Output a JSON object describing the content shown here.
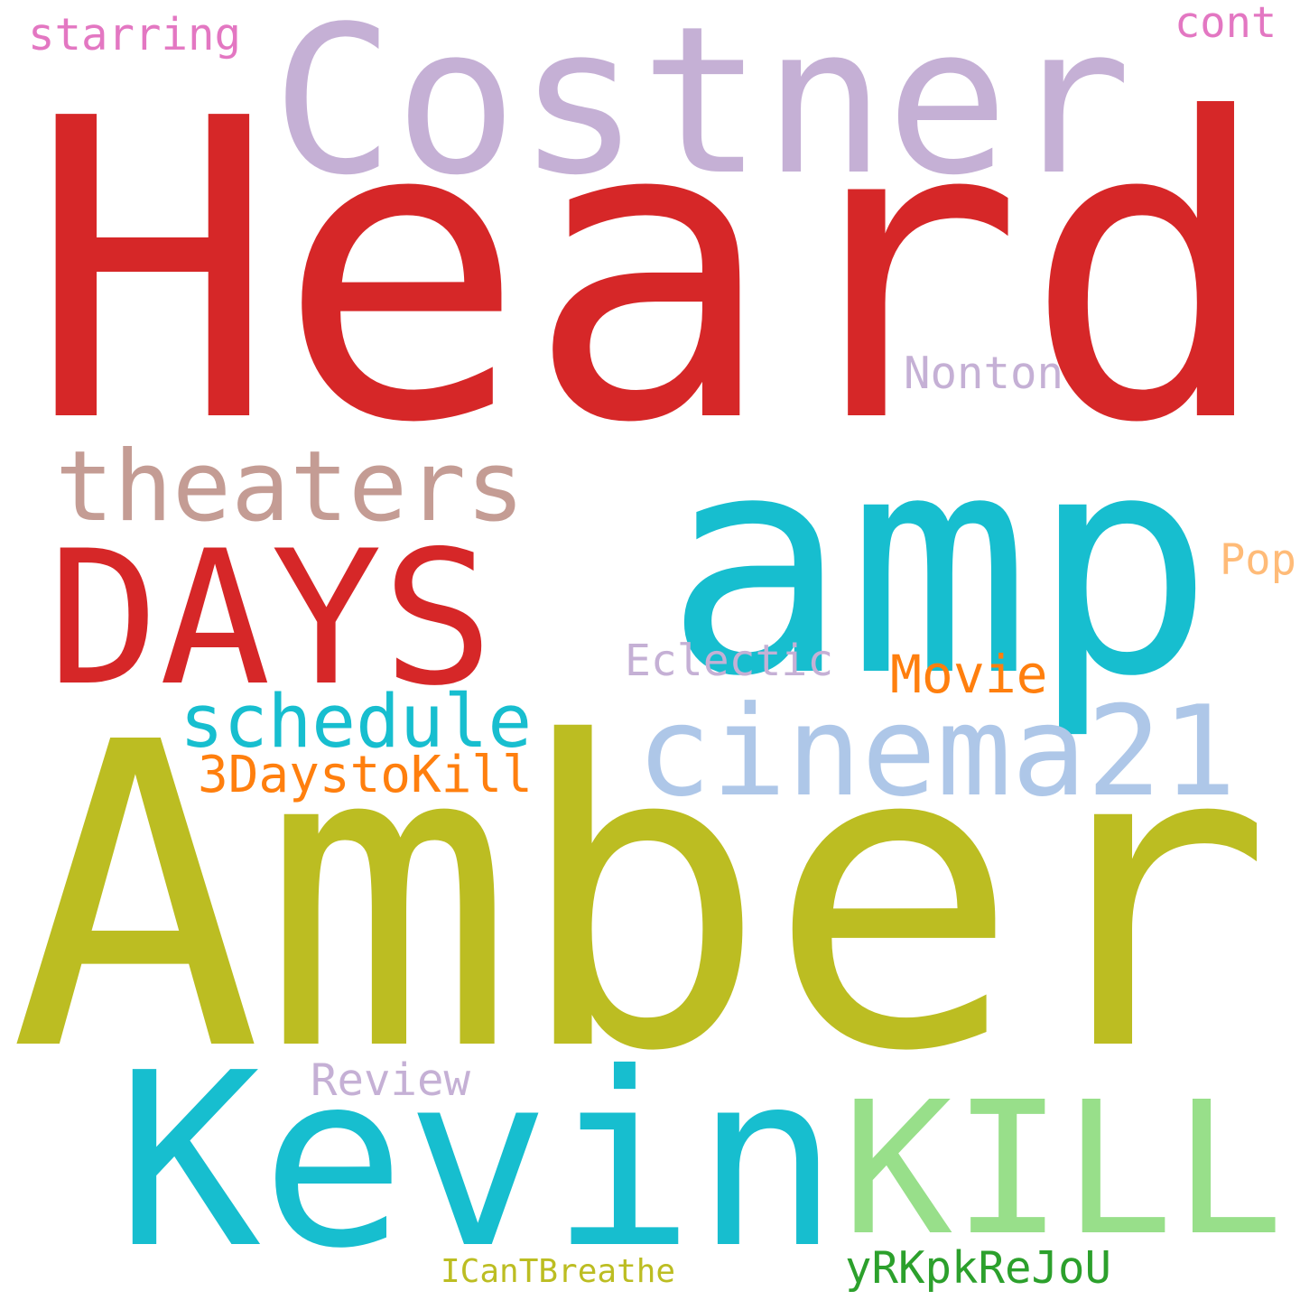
{
  "words": [
    {
      "text": "Heard",
      "color": "#d62728"
    },
    {
      "text": "Amber",
      "color": "#bcbd22"
    },
    {
      "text": "amp",
      "color": "#17becf"
    },
    {
      "text": "Costner",
      "color": "#c5b0d5"
    },
    {
      "text": "Kevin",
      "color": "#17becf"
    },
    {
      "text": "KILL",
      "color": "#98df8a"
    },
    {
      "text": "DAYS",
      "color": "#d62728"
    },
    {
      "text": "cinema21",
      "color": "#aec7e8"
    },
    {
      "text": "theaters",
      "color": "#c49c94"
    },
    {
      "text": "schedule",
      "color": "#17becf"
    },
    {
      "text": "3DaystoKill",
      "color": "#ff7f0e"
    },
    {
      "text": "Movie",
      "color": "#ff7f0e"
    },
    {
      "text": "Eclectic",
      "color": "#c5b0d5"
    },
    {
      "text": "Nonton",
      "color": "#c5b0d5"
    },
    {
      "text": "Review",
      "color": "#c5b0d5"
    },
    {
      "text": "yRKpkReJoU",
      "color": "#2ca02c"
    },
    {
      "text": "ICanTBreathe",
      "color": "#bcbd22"
    },
    {
      "text": "starring",
      "color": "#e377c2"
    },
    {
      "text": "cont",
      "color": "#e377c2"
    },
    {
      "text": "Pop",
      "color": "#ffbb78"
    }
  ]
}
